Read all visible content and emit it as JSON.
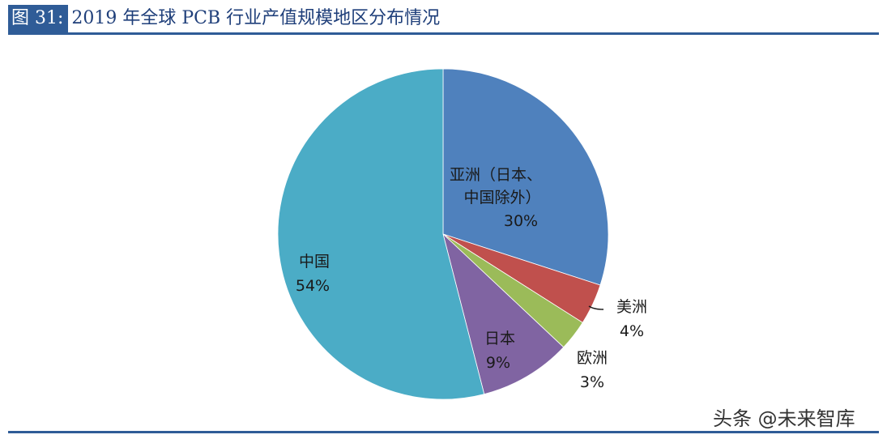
{
  "header": {
    "figure_label": "图 31:",
    "title": "2019 年全球 PCB 行业产值规模地区分布情况"
  },
  "watermark": "头条 @未来智库",
  "colors": {
    "accent": "#2f5c97",
    "asia": "#4f81bd",
    "americas": "#c0504d",
    "europe": "#9bbb59",
    "japan": "#8064a2",
    "china": "#4bacc6"
  },
  "chart_data": {
    "type": "pie",
    "title": "2019 年全球 PCB 行业产值规模地区分布情况",
    "categories": [
      "亚洲（日本、中国除外）",
      "美洲",
      "欧洲",
      "日本",
      "中国"
    ],
    "values": [
      30,
      4,
      3,
      9,
      54
    ],
    "unit": "%",
    "start_angle": "12 o'clock, clockwise",
    "labels": [
      {
        "line1": "亚洲（日本、",
        "line2": "中国除外）",
        "pct": "30%"
      },
      {
        "line1": "美洲",
        "pct": "4%"
      },
      {
        "line1": "欧洲",
        "pct": "3%"
      },
      {
        "line1": "日本",
        "pct": "9%"
      },
      {
        "line1": "中国",
        "pct": "54%"
      }
    ],
    "legend": "none (data labels on slices)"
  }
}
